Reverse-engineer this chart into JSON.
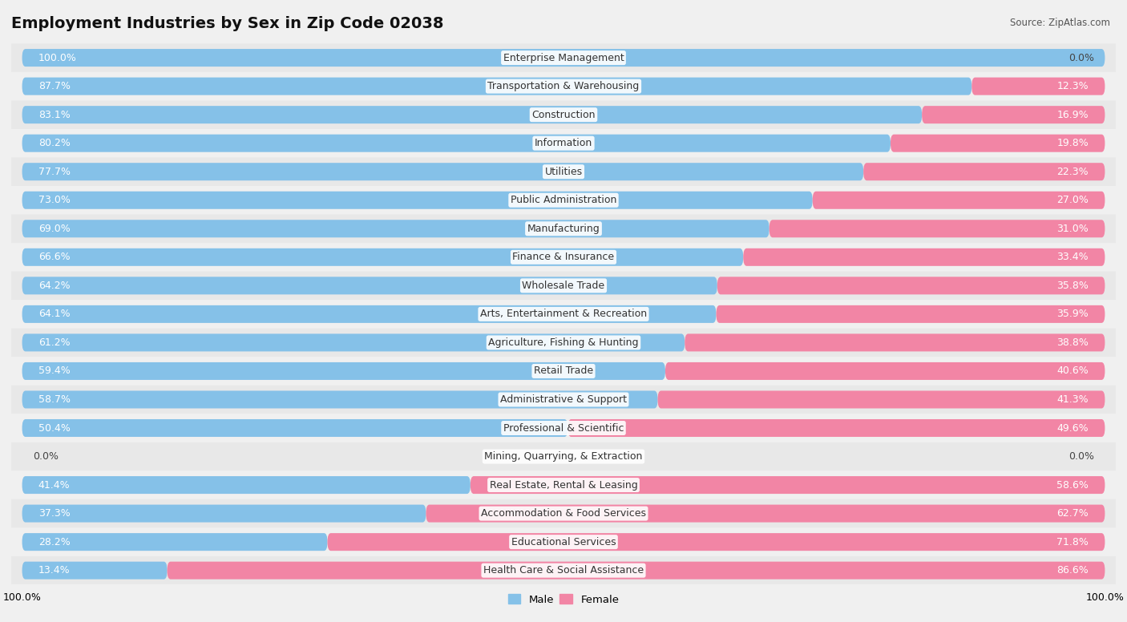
{
  "title": "Employment Industries by Sex in Zip Code 02038",
  "source": "Source: ZipAtlas.com",
  "industries": [
    {
      "name": "Enterprise Management",
      "male": 100.0,
      "female": 0.0
    },
    {
      "name": "Transportation & Warehousing",
      "male": 87.7,
      "female": 12.3
    },
    {
      "name": "Construction",
      "male": 83.1,
      "female": 16.9
    },
    {
      "name": "Information",
      "male": 80.2,
      "female": 19.8
    },
    {
      "name": "Utilities",
      "male": 77.7,
      "female": 22.3
    },
    {
      "name": "Public Administration",
      "male": 73.0,
      "female": 27.0
    },
    {
      "name": "Manufacturing",
      "male": 69.0,
      "female": 31.0
    },
    {
      "name": "Finance & Insurance",
      "male": 66.6,
      "female": 33.4
    },
    {
      "name": "Wholesale Trade",
      "male": 64.2,
      "female": 35.8
    },
    {
      "name": "Arts, Entertainment & Recreation",
      "male": 64.1,
      "female": 35.9
    },
    {
      "name": "Agriculture, Fishing & Hunting",
      "male": 61.2,
      "female": 38.8
    },
    {
      "name": "Retail Trade",
      "male": 59.4,
      "female": 40.6
    },
    {
      "name": "Administrative & Support",
      "male": 58.7,
      "female": 41.3
    },
    {
      "name": "Professional & Scientific",
      "male": 50.4,
      "female": 49.6
    },
    {
      "name": "Mining, Quarrying, & Extraction",
      "male": 0.0,
      "female": 0.0
    },
    {
      "name": "Real Estate, Rental & Leasing",
      "male": 41.4,
      "female": 58.6
    },
    {
      "name": "Accommodation & Food Services",
      "male": 37.3,
      "female": 62.7
    },
    {
      "name": "Educational Services",
      "male": 28.2,
      "female": 71.8
    },
    {
      "name": "Health Care & Social Assistance",
      "male": 13.4,
      "female": 86.6
    }
  ],
  "male_color": "#85c1e8",
  "female_color": "#f285a5",
  "row_colors": [
    "#e8e8e8",
    "#f0f0f0"
  ],
  "bar_height": 0.62,
  "title_fontsize": 14,
  "label_fontsize": 9,
  "pct_fontsize": 9,
  "source_fontsize": 8.5,
  "legend_fontsize": 9.5,
  "bg_color": "#f0f0f0"
}
